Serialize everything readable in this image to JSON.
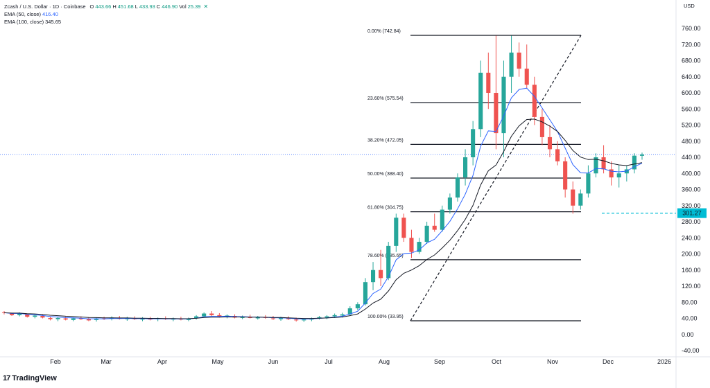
{
  "legend": {
    "symbol": "Zcash / U.S. Dollar · 1D · Coinbase",
    "open_label": "O",
    "open": "443.66",
    "high_label": "H",
    "high": "451.68",
    "low_label": "L",
    "low": "433.93",
    "close_label": "C",
    "close": "446.90",
    "vol_label": "Vol",
    "vol": "25.39",
    "ema50_label": "EMA (50, close)",
    "ema50_value": "416.40",
    "ema100_label": "EMA (100, close)",
    "ema100_value": "345.65"
  },
  "currency_label": "USD",
  "price_tag": "301.27",
  "branding": "TradingView",
  "colors": {
    "up": "#26a69a",
    "down": "#ef5350",
    "ema50": "#2962ff",
    "ema100": "#131722",
    "tag": "#00bcd4",
    "grid_dot": "#2962ff"
  },
  "chart_data": {
    "type": "candlestick",
    "ylim": [
      -40,
      760
    ],
    "y_ticks": [
      "-40.00",
      "0.00",
      "40.00",
      "80.00",
      "120.00",
      "160.00",
      "200.00",
      "240.00",
      "280.00",
      "320.00",
      "360.00",
      "400.00",
      "440.00",
      "480.00",
      "520.00",
      "560.00",
      "600.00",
      "640.00",
      "680.00",
      "720.00",
      "760.00"
    ],
    "x_ticks": [
      "Feb",
      "Mar",
      "Apr",
      "May",
      "Jun",
      "Jul",
      "Aug",
      "Sep",
      "Oct",
      "Nov",
      "Dec",
      "2026"
    ],
    "fib_levels": [
      {
        "label": "0.00% (742.84)",
        "price": 742.84
      },
      {
        "label": "23.60% (575.54)",
        "price": 575.54
      },
      {
        "label": "38.20% (472.05)",
        "price": 472.05
      },
      {
        "label": "50.00% (388.40)",
        "price": 388.4
      },
      {
        "label": "61.80% (304.75)",
        "price": 304.75
      },
      {
        "label": "78.60% (185.65)",
        "price": 185.65
      },
      {
        "label": "100.00% (33.95)",
        "price": 33.95
      }
    ],
    "current_price": 446.9,
    "support_price": 301.27,
    "candles_ohlc": [
      [
        55,
        58,
        50,
        54
      ],
      [
        52,
        54,
        46,
        48
      ],
      [
        48,
        55,
        45,
        53
      ],
      [
        50,
        52,
        42,
        44
      ],
      [
        44,
        50,
        40,
        47
      ],
      [
        46,
        49,
        40,
        42
      ],
      [
        41,
        45,
        35,
        38
      ],
      [
        38,
        44,
        33,
        41
      ],
      [
        40,
        44,
        35,
        37
      ],
      [
        36,
        42,
        33,
        40
      ],
      [
        40,
        45,
        36,
        38
      ],
      [
        38,
        43,
        33,
        35
      ],
      [
        36,
        42,
        32,
        40
      ],
      [
        40,
        44,
        36,
        38
      ],
      [
        39,
        45,
        35,
        42
      ],
      [
        41,
        46,
        37,
        39
      ],
      [
        38,
        44,
        34,
        41
      ],
      [
        40,
        45,
        36,
        38
      ],
      [
        37,
        43,
        33,
        40
      ],
      [
        39,
        44,
        35,
        37
      ],
      [
        38,
        42,
        33,
        40
      ],
      [
        40,
        45,
        36,
        38
      ],
      [
        37,
        42,
        33,
        39
      ],
      [
        39,
        44,
        35,
        37
      ],
      [
        36,
        42,
        33,
        40
      ],
      [
        40,
        48,
        37,
        45
      ],
      [
        45,
        55,
        42,
        52
      ],
      [
        52,
        58,
        46,
        48
      ],
      [
        48,
        53,
        42,
        44
      ],
      [
        44,
        50,
        40,
        47
      ],
      [
        46,
        50,
        40,
        42
      ],
      [
        41,
        47,
        38,
        44
      ],
      [
        44,
        49,
        40,
        41
      ],
      [
        40,
        46,
        37,
        43
      ],
      [
        43,
        48,
        39,
        41
      ],
      [
        40,
        46,
        36,
        39
      ],
      [
        38,
        44,
        34,
        41
      ],
      [
        40,
        45,
        36,
        38
      ],
      [
        37,
        42,
        32,
        35
      ],
      [
        35,
        40,
        31,
        37
      ],
      [
        37,
        42,
        33,
        40
      ],
      [
        40,
        46,
        37,
        43
      ],
      [
        42,
        48,
        38,
        45
      ],
      [
        45,
        52,
        41,
        48
      ],
      [
        47,
        54,
        42,
        50
      ],
      [
        50,
        70,
        47,
        65
      ],
      [
        65,
        80,
        60,
        75
      ],
      [
        75,
        140,
        72,
        130
      ],
      [
        130,
        180,
        110,
        160
      ],
      [
        160,
        210,
        120,
        140
      ],
      [
        140,
        230,
        135,
        220
      ],
      [
        220,
        300,
        205,
        290
      ],
      [
        290,
        300,
        230,
        240
      ],
      [
        240,
        260,
        190,
        205
      ],
      [
        205,
        240,
        200,
        230
      ],
      [
        230,
        280,
        225,
        270
      ],
      [
        270,
        300,
        255,
        260
      ],
      [
        260,
        320,
        255,
        310
      ],
      [
        310,
        350,
        300,
        340
      ],
      [
        340,
        400,
        330,
        390
      ],
      [
        390,
        460,
        370,
        440
      ],
      [
        440,
        530,
        420,
        510
      ],
      [
        510,
        680,
        490,
        650
      ],
      [
        650,
        700,
        560,
        600
      ],
      [
        600,
        742,
        460,
        500
      ],
      [
        500,
        680,
        440,
        640
      ],
      [
        640,
        742,
        600,
        700
      ],
      [
        700,
        725,
        640,
        660
      ],
      [
        660,
        720,
        610,
        620
      ],
      [
        620,
        640,
        520,
        540
      ],
      [
        540,
        560,
        470,
        490
      ],
      [
        490,
        520,
        440,
        460
      ],
      [
        460,
        480,
        420,
        430
      ],
      [
        430,
        440,
        340,
        360
      ],
      [
        360,
        380,
        300,
        320
      ],
      [
        320,
        360,
        310,
        350
      ],
      [
        350,
        420,
        340,
        400
      ],
      [
        400,
        450,
        390,
        440
      ],
      [
        440,
        470,
        400,
        410
      ],
      [
        410,
        430,
        370,
        390
      ],
      [
        390,
        420,
        365,
        400
      ],
      [
        400,
        420,
        380,
        410
      ],
      [
        410,
        450,
        400,
        444
      ],
      [
        443.66,
        451.68,
        433.93,
        446.9
      ]
    ]
  }
}
